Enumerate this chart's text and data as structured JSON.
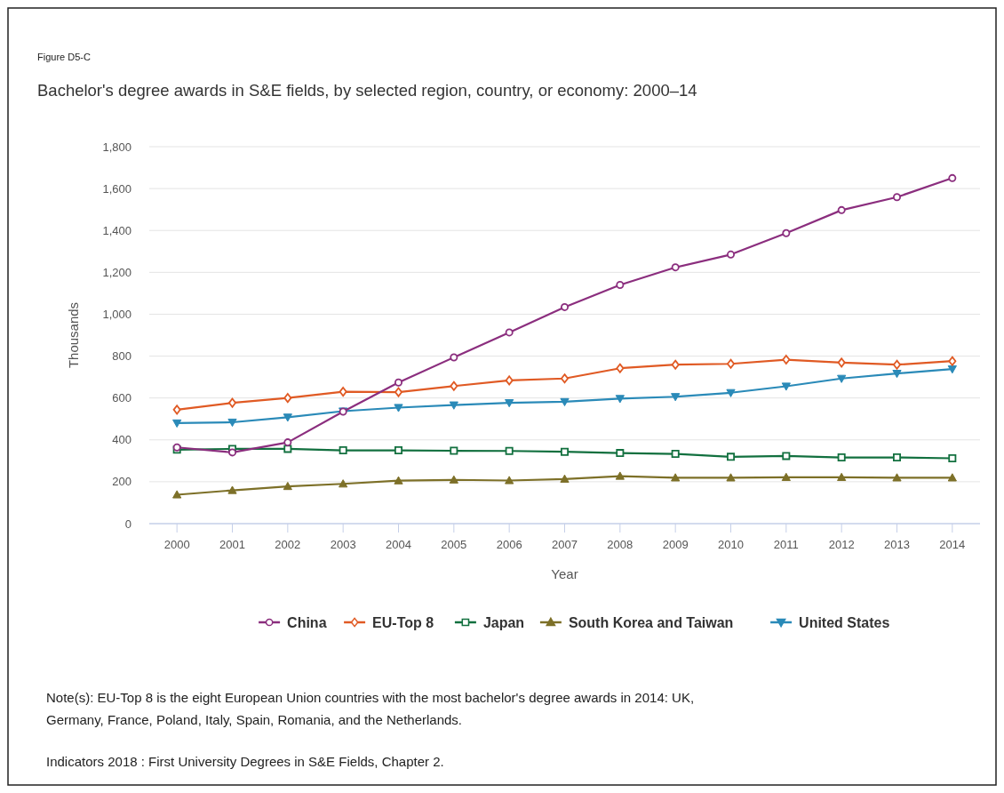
{
  "chart_data": {
    "type": "line",
    "subtitle": "Figure D5-C",
    "title": "Bachelor's degree awards in S&E fields, by selected region, country, or economy: 2000–14",
    "xlabel": "Year",
    "ylabel": "Thousands",
    "categories": [
      "2000",
      "2001",
      "2002",
      "2003",
      "2004",
      "2005",
      "2006",
      "2007",
      "2008",
      "2009",
      "2010",
      "2011",
      "2012",
      "2013",
      "2014"
    ],
    "series": [
      {
        "name": "China",
        "color": "#8b2e7e",
        "marker": "circle",
        "values": [
          364,
          340,
          388,
          535,
          674,
          794,
          913,
          1034,
          1140,
          1224,
          1285,
          1387,
          1497,
          1559,
          1650
        ]
      },
      {
        "name": "EU-Top 8",
        "color": "#e05a24",
        "marker": "diamond",
        "values": [
          544,
          577,
          600,
          630,
          628,
          657,
          684,
          693,
          742,
          759,
          763,
          783,
          769,
          759,
          776
        ]
      },
      {
        "name": "Japan",
        "color": "#12703f",
        "marker": "square",
        "values": [
          353,
          357,
          357,
          350,
          350,
          348,
          347,
          343,
          337,
          333,
          319,
          323,
          316,
          316,
          312
        ]
      },
      {
        "name": "South Korea and Taiwan",
        "color": "#7d7028",
        "marker": "triangle",
        "values": [
          138,
          159,
          178,
          190,
          205,
          209,
          206,
          213,
          227,
          219,
          219,
          221,
          221,
          219,
          219
        ]
      },
      {
        "name": "United States",
        "color": "#2a8ab8",
        "marker": "triangle-down",
        "values": [
          480,
          484,
          508,
          537,
          554,
          566,
          577,
          582,
          597,
          606,
          625,
          656,
          693,
          717,
          738
        ]
      }
    ],
    "ylim": [
      0,
      1800
    ],
    "yticks": [
      0,
      {
        "value": 200,
        "label": "200"
      },
      {
        "value": 400,
        "label": "400"
      },
      {
        "value": 600,
        "label": "600"
      },
      {
        "value": 800,
        "label": "800"
      },
      {
        "value": 1000,
        "label": "1,000"
      },
      {
        "value": 1200,
        "label": "1,200"
      },
      {
        "value": 1400,
        "label": "1,400"
      },
      {
        "value": 1600,
        "label": "1,600"
      },
      {
        "value": 1800,
        "label": "1,800"
      }
    ],
    "grid": "y",
    "legend": "bottom",
    "line_style": "solid",
    "annotations": [
      "Note(s): EU-Top 8 is the eight European Union countries with the most bachelor's degree awards in 2014: UK, Germany, France, Poland, Italy, Spain, Romania, and the Netherlands.",
      "Indicators 2018 : First University Degrees in S&E Fields, Chapter 2."
    ]
  }
}
